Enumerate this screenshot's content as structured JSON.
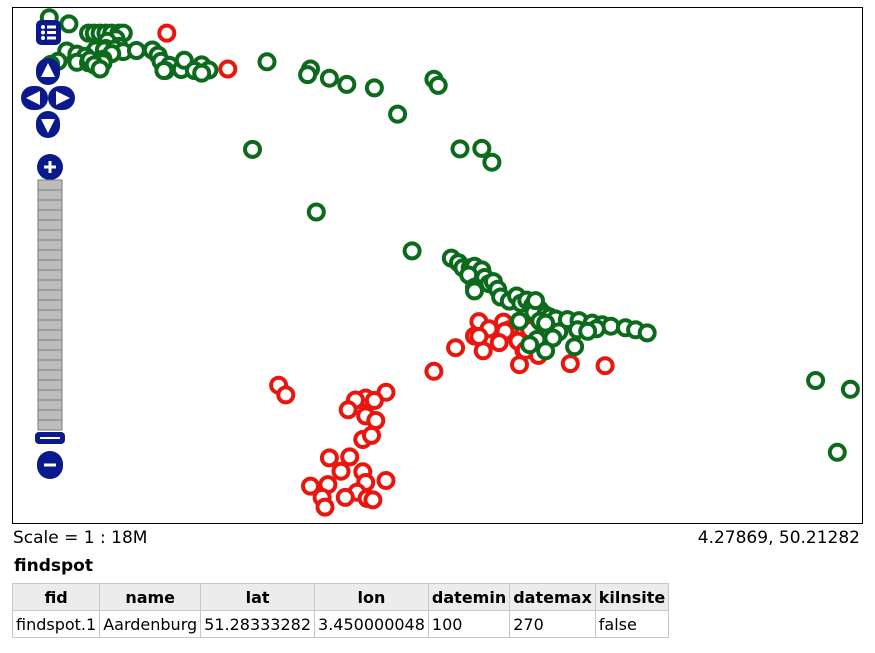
{
  "map": {
    "colors": {
      "kiln": "#e8160e",
      "findspot": "#0b6a1b",
      "control": "#0a1a8c"
    },
    "controls": {
      "layer_switcher_icon": "list-icon",
      "pan_icons": [
        "pan-up-icon",
        "pan-left-icon",
        "pan-right-icon",
        "pan-down-icon"
      ],
      "zoom_in_icon": "plus-icon",
      "zoom_out_icon": "minus-icon"
    },
    "points_lonlat": {
      "findspots": [
        [
          2.8,
          52.12
        ],
        [
          3.07,
          51.88
        ],
        [
          3.34,
          51.52
        ],
        [
          3.42,
          51.52
        ],
        [
          3.5,
          51.52
        ],
        [
          3.58,
          51.52
        ],
        [
          3.66,
          51.52
        ],
        [
          3.76,
          51.52
        ],
        [
          3.82,
          51.52
        ],
        [
          3.72,
          51.3
        ],
        [
          3.6,
          51.2
        ],
        [
          3.76,
          51.0
        ],
        [
          3.58,
          50.92
        ],
        [
          3.44,
          50.86
        ],
        [
          3.56,
          50.86
        ],
        [
          3.7,
          50.9
        ],
        [
          3.82,
          50.8
        ],
        [
          4.0,
          50.84
        ],
        [
          3.04,
          50.82
        ],
        [
          3.66,
          50.72
        ],
        [
          3.18,
          50.7
        ],
        [
          3.3,
          50.62
        ],
        [
          3.54,
          50.5
        ],
        [
          2.92,
          50.42
        ],
        [
          2.82,
          50.3
        ],
        [
          3.18,
          50.38
        ],
        [
          3.34,
          50.36
        ],
        [
          3.36,
          50.48
        ],
        [
          3.54,
          50.36
        ],
        [
          3.42,
          50.28
        ],
        [
          3.5,
          50.12
        ],
        [
          4.22,
          50.86
        ],
        [
          4.3,
          50.66
        ],
        [
          4.34,
          50.42
        ],
        [
          4.46,
          50.26
        ],
        [
          4.4,
          50.06
        ],
        [
          4.62,
          50.1
        ],
        [
          4.66,
          50.46
        ],
        [
          4.38,
          50.06
        ],
        [
          4.9,
          50.28
        ],
        [
          4.8,
          50.06
        ],
        [
          5.0,
          50.08
        ],
        [
          4.9,
          49.96
        ],
        [
          5.8,
          50.4
        ],
        [
          6.4,
          50.12
        ],
        [
          6.66,
          49.76
        ],
        [
          6.36,
          49.9
        ],
        [
          6.9,
          49.52
        ],
        [
          7.28,
          49.38
        ],
        [
          8.1,
          49.72
        ],
        [
          8.16,
          49.48
        ],
        [
          7.6,
          48.36
        ],
        [
          8.46,
          47.0
        ],
        [
          8.76,
          47.02
        ],
        [
          8.9,
          46.48
        ],
        [
          7.8,
          43.02
        ],
        [
          8.34,
          42.74
        ],
        [
          8.44,
          42.56
        ],
        [
          8.5,
          42.36
        ],
        [
          8.6,
          42.36
        ],
        [
          8.66,
          42.42
        ],
        [
          8.76,
          42.28
        ],
        [
          8.58,
          42.08
        ],
        [
          8.8,
          41.98
        ],
        [
          8.86,
          41.74
        ],
        [
          8.66,
          41.6
        ],
        [
          8.66,
          41.46
        ],
        [
          8.92,
          41.82
        ],
        [
          8.98,
          41.52
        ],
        [
          9.02,
          41.22
        ],
        [
          9.14,
          41.06
        ],
        [
          9.24,
          41.26
        ],
        [
          9.3,
          40.98
        ],
        [
          9.38,
          41.1
        ],
        [
          9.46,
          40.88
        ],
        [
          9.56,
          40.72
        ],
        [
          9.48,
          40.62
        ],
        [
          9.64,
          40.52
        ],
        [
          9.7,
          40.44
        ],
        [
          9.78,
          40.36
        ],
        [
          9.94,
          40.34
        ],
        [
          10.1,
          40.3
        ],
        [
          10.28,
          40.2
        ],
        [
          10.42,
          40.14
        ],
        [
          10.54,
          40.08
        ],
        [
          10.74,
          40.02
        ],
        [
          10.88,
          39.94
        ],
        [
          10.34,
          39.98
        ],
        [
          10.08,
          39.94
        ],
        [
          9.82,
          39.86
        ],
        [
          9.74,
          39.62
        ],
        [
          9.52,
          39.56
        ],
        [
          9.42,
          39.36
        ],
        [
          9.64,
          39.12
        ],
        [
          10.22,
          39.88
        ],
        [
          11.04,
          39.82
        ],
        [
          10.04,
          39.28
        ],
        [
          13.36,
          37.96
        ],
        [
          13.84,
          37.62
        ],
        [
          13.66,
          35.16
        ],
        [
          5.6,
          46.98
        ],
        [
          6.48,
          44.54
        ],
        [
          9.28,
          40.28
        ],
        [
          9.5,
          41.08
        ],
        [
          9.56,
          40.28
        ],
        [
          9.64,
          40.2
        ]
      ],
      "kilns": [
        [
          4.42,
          51.52
        ],
        [
          5.26,
          50.12
        ],
        [
          8.78,
          39.12
        ],
        [
          8.1,
          38.32
        ],
        [
          9.28,
          38.58
        ],
        [
          9.34,
          39.14
        ],
        [
          8.72,
          40.26
        ],
        [
          8.86,
          39.98
        ],
        [
          9.06,
          40.24
        ],
        [
          9.14,
          39.94
        ],
        [
          9.42,
          39.94
        ],
        [
          10.46,
          38.54
        ],
        [
          5.96,
          37.78
        ],
        [
          6.06,
          37.4
        ],
        [
          7.16,
          37.28
        ],
        [
          7.44,
          37.5
        ],
        [
          7.28,
          37.18
        ],
        [
          7.02,
          37.2
        ],
        [
          6.92,
          36.82
        ],
        [
          7.16,
          36.58
        ],
        [
          7.3,
          36.4
        ],
        [
          8.4,
          39.24
        ],
        [
          8.66,
          39.7
        ],
        [
          9.08,
          39.88
        ],
        [
          9.0,
          39.44
        ],
        [
          9.26,
          39.5
        ],
        [
          9.36,
          39.14
        ],
        [
          8.72,
          39.68
        ],
        [
          6.66,
          34.94
        ],
        [
          6.94,
          34.98
        ],
        [
          6.82,
          34.42
        ],
        [
          7.12,
          34.4
        ],
        [
          7.16,
          33.98
        ],
        [
          7.44,
          34.06
        ],
        [
          7.04,
          33.6
        ],
        [
          7.18,
          33.36
        ],
        [
          6.4,
          33.84
        ],
        [
          6.64,
          33.9
        ],
        [
          6.56,
          33.4
        ],
        [
          6.6,
          33.02
        ],
        [
          7.26,
          33.3
        ],
        [
          6.88,
          33.4
        ],
        [
          9.54,
          38.94
        ],
        [
          9.7,
          39.78
        ],
        [
          7.12,
          35.66
        ],
        [
          7.24,
          35.82
        ],
        [
          9.98,
          38.62
        ]
      ]
    }
  },
  "footer": {
    "scale": "Scale = 1 : 18M",
    "coordinates": "4.27869, 50.21282"
  },
  "layer": {
    "title": "findspot",
    "columns": [
      "fid",
      "name",
      "lat",
      "lon",
      "datemin",
      "datemax",
      "kilnsite"
    ],
    "rows": [
      [
        "findspot.1",
        "Aardenburg",
        "51.28333282",
        "3.450000048",
        "100",
        "270",
        "false"
      ]
    ]
  }
}
